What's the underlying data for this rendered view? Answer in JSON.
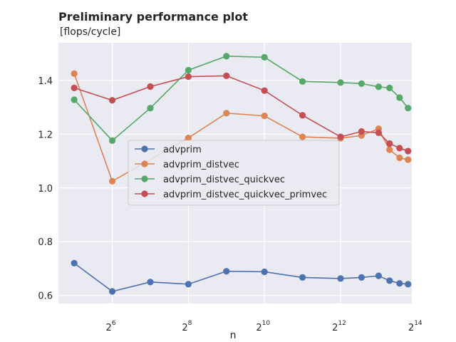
{
  "chart_data": {
    "type": "line",
    "title": "Preliminary performance plot",
    "subtitle": "[flops/cycle]",
    "xlabel": "n",
    "ylabel": "",
    "x_scale": "log2",
    "xlim": [
      24,
      15000
    ],
    "ylim": [
      0.57,
      1.54
    ],
    "grid": true,
    "legend_position": "center-left",
    "x_ticks": [
      {
        "base": "2",
        "exp": "6",
        "value": 64
      },
      {
        "base": "2",
        "exp": "8",
        "value": 256
      },
      {
        "base": "2",
        "exp": "10",
        "value": 1024
      },
      {
        "base": "2",
        "exp": "12",
        "value": 4096
      },
      {
        "base": "2",
        "exp": "14",
        "value": 16384
      }
    ],
    "y_ticks": [
      {
        "label": "0.6",
        "value": 0.6
      },
      {
        "label": "0.8",
        "value": 0.8
      },
      {
        "label": "1.0",
        "value": 1.0
      },
      {
        "label": "1.2",
        "value": 1.2
      },
      {
        "label": "1.4",
        "value": 1.4
      }
    ],
    "x": [
      32,
      64,
      128,
      256,
      512,
      1024,
      2048,
      4096,
      6000,
      8192,
      10000,
      12000,
      14000
    ],
    "series": [
      {
        "name": "advprim",
        "color": "#4c72b0",
        "values": [
          0.72,
          0.615,
          0.65,
          0.642,
          0.69,
          0.688,
          0.667,
          0.663,
          0.667,
          0.673,
          0.655,
          0.645,
          0.642
        ]
      },
      {
        "name": "advprim_distvec",
        "color": "#dd8452",
        "values": [
          1.425,
          1.025,
          null,
          1.186,
          1.278,
          1.268,
          1.19,
          1.185,
          1.195,
          1.22,
          1.142,
          1.112,
          1.105
        ]
      },
      {
        "name": "advprim_distvec_quickvec",
        "color": "#55a868",
        "values": [
          1.328,
          1.176,
          1.297,
          1.438,
          1.49,
          1.486,
          1.396,
          1.392,
          1.388,
          1.376,
          1.372,
          1.336,
          1.297
        ]
      },
      {
        "name": "advprim_distvec_quickvec_primvec",
        "color": "#c44e52",
        "values": [
          1.372,
          1.326,
          1.377,
          1.414,
          1.417,
          1.362,
          1.27,
          1.19,
          1.21,
          1.205,
          1.165,
          1.148,
          1.137
        ]
      }
    ]
  },
  "style": {
    "plot_background": "#eaeaf2",
    "grid_color": "#ffffff",
    "text_color": "#262626"
  }
}
